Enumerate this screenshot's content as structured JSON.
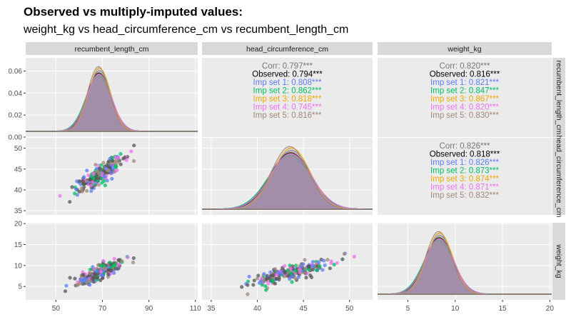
{
  "chart_data": {
    "type": "scatter",
    "title": "Observed vs multiply-imputed values:",
    "subtitle": "weight_kg vs head_circumference_cm vs recumbent_length_cm",
    "variables": [
      "recumbent_length_cm",
      "head_circumference_cm",
      "weight_kg"
    ],
    "col_strip_labels": [
      "recumbent_length_cm",
      "head_circumference_cm",
      "weight_kg"
    ],
    "row_strip_labels": [
      "recumbent_length_cm",
      "head_circumference_cm",
      "weight_kg"
    ],
    "axes": {
      "recumbent_length_cm": {
        "range": [
          37,
          111
        ],
        "ticks": [
          50,
          70,
          90,
          110
        ],
        "tick_labels": [
          "50",
          "70",
          "90",
          "110"
        ]
      },
      "head_circumference_cm": {
        "range": [
          34,
          52.5
        ],
        "ticks": [
          35,
          40,
          45,
          50
        ],
        "tick_labels": [
          "35",
          "40",
          "45",
          "50"
        ]
      },
      "weight_kg": {
        "range": [
          1.8,
          20.2
        ],
        "ticks": [
          5,
          10,
          15,
          20
        ],
        "tick_labels": [
          "5",
          "10",
          "15",
          "20"
        ]
      }
    },
    "density_axis": {
      "range": [
        0,
        0.072
      ],
      "ticks": [
        0.0,
        0.02,
        0.04,
        0.06
      ],
      "tick_labels": [
        "0.00",
        "0.02",
        "0.04",
        "0.06"
      ]
    },
    "datasets": [
      {
        "name": "Observed",
        "color": "#000000"
      },
      {
        "name": "Imp set 1",
        "color": "#5c7cf8"
      },
      {
        "name": "Imp set 2",
        "color": "#00c060"
      },
      {
        "name": "Imp set 3",
        "color": "#f0a800"
      },
      {
        "name": "Imp set 4",
        "color": "#f070f0"
      },
      {
        "name": "Imp set 5",
        "color": "#a08878"
      }
    ],
    "densities": {
      "recumbent_length_cm": {
        "mean": 68.5,
        "sd": 5.2
      },
      "head_circumference_cm": {
        "mean": 43.6,
        "sd": 2.2
      },
      "weight_kg": {
        "mean": 8.3,
        "sd": 1.5
      }
    },
    "correlations": [
      {
        "row": "recumbent_length_cm",
        "col": "head_circumference_cm",
        "lines": [
          {
            "label": "Corr: 0.797***",
            "color": "#777777"
          },
          {
            "label": "Observed: 0.794***",
            "color": "#000000"
          },
          {
            "label": "Imp set 1: 0.808***",
            "color": "#5c7cf8"
          },
          {
            "label": "Imp set 2: 0.862***",
            "color": "#00c060"
          },
          {
            "label": "Imp set 3: 0.818***",
            "color": "#f0a800"
          },
          {
            "label": "Imp set 4: 0.745***",
            "color": "#f070f0"
          },
          {
            "label": "Imp set 5: 0.816***",
            "color": "#a08878"
          }
        ]
      },
      {
        "row": "recumbent_length_cm",
        "col": "weight_kg",
        "lines": [
          {
            "label": "Corr: 0.820***",
            "color": "#777777"
          },
          {
            "label": "Observed: 0.816***",
            "color": "#000000"
          },
          {
            "label": "Imp set 1: 0.821***",
            "color": "#5c7cf8"
          },
          {
            "label": "Imp set 2: 0.847***",
            "color": "#00c060"
          },
          {
            "label": "Imp set 3: 0.867***",
            "color": "#f0a800"
          },
          {
            "label": "Imp set 4: 0.820***",
            "color": "#f070f0"
          },
          {
            "label": "Imp set 5: 0.830***",
            "color": "#a08878"
          }
        ]
      },
      {
        "row": "head_circumference_cm",
        "col": "weight_kg",
        "lines": [
          {
            "label": "Corr: 0.826***",
            "color": "#777777"
          },
          {
            "label": "Observed: 0.818***",
            "color": "#000000"
          },
          {
            "label": "Imp set 1: 0.826***",
            "color": "#5c7cf8"
          },
          {
            "label": "Imp set 2: 0.873***",
            "color": "#00c060"
          },
          {
            "label": "Imp set 3: 0.874***",
            "color": "#f0a800"
          },
          {
            "label": "Imp set 4: 0.871***",
            "color": "#f070f0"
          },
          {
            "label": "Imp set 5: 0.832***",
            "color": "#a08878"
          }
        ]
      }
    ],
    "scatter_panels": [
      {
        "x": "recumbent_length_cm",
        "y": "head_circumference_cm"
      },
      {
        "x": "recumbent_length_cm",
        "y": "weight_kg"
      },
      {
        "x": "head_circumference_cm",
        "y": "weight_kg"
      }
    ],
    "colors": {
      "panel_bg": "#ebebeb",
      "strip_bg": "#d9d9d9",
      "grid": "#ffffff",
      "density_fill": "#9f7ee0",
      "observed_points": "#555555"
    }
  }
}
